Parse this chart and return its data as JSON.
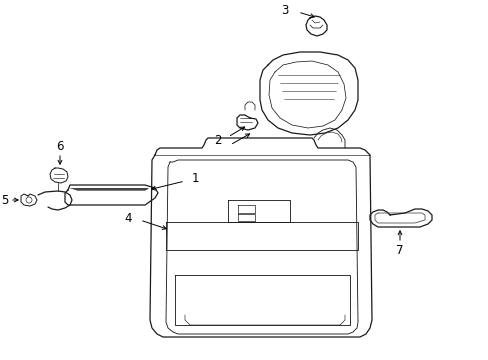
{
  "background_color": "#ffffff",
  "line_color": "#1a1a1a",
  "lw": 0.9,
  "fig_width": 4.89,
  "fig_height": 3.6,
  "dpi": 100,
  "xlim": [
    0,
    489
  ],
  "ylim": [
    0,
    360
  ]
}
